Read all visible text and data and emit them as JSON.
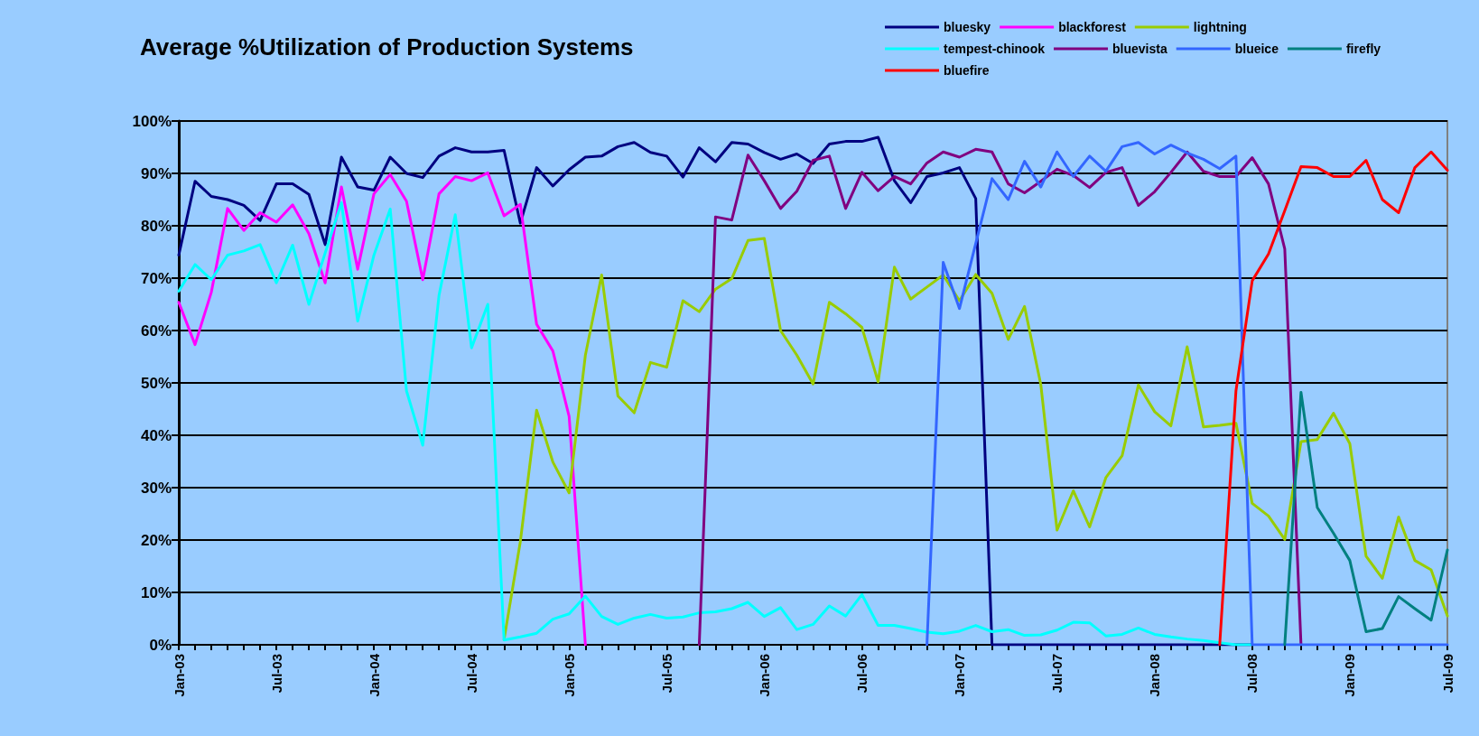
{
  "chart_data": {
    "type": "line",
    "title": "Average %Utilization of Production Systems",
    "categories": [
      "Jan-03",
      null,
      null,
      null,
      null,
      null,
      "Jul-03",
      null,
      null,
      null,
      null,
      null,
      "Jan-04",
      null,
      null,
      null,
      null,
      null,
      "Jul-04",
      null,
      null,
      null,
      null,
      null,
      "Jan-05",
      null,
      null,
      null,
      null,
      null,
      "Jul-05",
      null,
      null,
      null,
      null,
      null,
      "Jan-06",
      null,
      null,
      null,
      null,
      null,
      "Jul-06",
      null,
      null,
      null,
      null,
      null,
      "Jan-07",
      null,
      null,
      null,
      null,
      null,
      "Jul-07",
      null,
      null,
      null,
      null,
      null,
      "Jan-08",
      null,
      null,
      null,
      null,
      null,
      "Jul-08",
      null,
      null,
      null,
      null,
      null,
      "Jan-09",
      null,
      null,
      null,
      null,
      null,
      "Jul-09"
    ],
    "series": [
      {
        "name": "bluesky",
        "color": "#000080",
        "values": [
          74.4,
          88.5,
          85.6,
          85,
          83.9,
          81,
          88,
          88,
          86,
          76.4,
          93.1,
          87.4,
          86.8,
          93.1,
          90,
          89.2,
          93.3,
          94.9,
          94.1,
          94.1,
          94.4,
          80.5,
          91.1,
          87.6,
          90.7,
          93.1,
          93.3,
          95.1,
          95.9,
          94,
          93.3,
          89.3,
          94.9,
          92.2,
          95.9,
          95.6,
          94,
          92.7,
          93.7,
          91.9,
          95.6,
          96.1,
          96.1,
          96.9,
          88.6,
          84.4,
          89.4,
          90.1,
          91.1,
          85.2,
          0,
          0,
          0,
          0,
          0,
          0,
          0,
          0,
          0,
          0,
          0,
          0,
          0,
          0,
          0,
          0,
          0,
          null,
          null,
          null,
          null,
          null,
          null,
          null,
          null,
          null,
          null,
          null,
          null
        ]
      },
      {
        "name": "blackforest",
        "color": "#ff00ff",
        "values": [
          65.4,
          57.3,
          67.3,
          83.3,
          79.1,
          82.5,
          80.7,
          84,
          78.5,
          69.1,
          87.4,
          71.7,
          86.1,
          89.8,
          84.7,
          69.7,
          86.1,
          89.4,
          88.6,
          90.1,
          81.9,
          84.1,
          61.2,
          56.1,
          43.6,
          0,
          null,
          null,
          null,
          null,
          null,
          null,
          null,
          null,
          null,
          null,
          null,
          null,
          null,
          null,
          null,
          null,
          null,
          null,
          null,
          null,
          null,
          null,
          null,
          null,
          null,
          null,
          null,
          null,
          null,
          null,
          null,
          null,
          null,
          null,
          null,
          null,
          null,
          null,
          null,
          null,
          null,
          null,
          null,
          null,
          null,
          null,
          null,
          null,
          null,
          null,
          null,
          null,
          null
        ]
      },
      {
        "name": "lightning",
        "color": "#99cc00",
        "values": [
          null,
          null,
          null,
          null,
          null,
          null,
          null,
          null,
          null,
          null,
          null,
          null,
          null,
          null,
          null,
          null,
          null,
          null,
          null,
          null,
          1,
          19.7,
          44.8,
          34.9,
          29,
          55.3,
          70.6,
          47.5,
          44.3,
          53.9,
          53,
          65.7,
          63.6,
          67.9,
          69.9,
          77.2,
          77.6,
          60,
          55.3,
          49.8,
          65.4,
          63.2,
          60.6,
          50.2,
          72.1,
          66,
          68.3,
          70.6,
          65.7,
          70.7,
          67.1,
          58.3,
          64.6,
          49.7,
          21.9,
          29.4,
          22.5,
          31.9,
          36.1,
          49.6,
          44.5,
          41.8,
          56.9,
          41.6,
          41.9,
          42.3,
          27,
          24.6,
          20.1,
          38.8,
          39.2,
          44.2,
          38.4,
          16.9,
          12.7,
          24.4,
          16.1,
          14.3,
          5.5
        ]
      },
      {
        "name": "tempest-chinook",
        "color": "#00ffff",
        "values": [
          67.5,
          72.6,
          69.7,
          74.4,
          75.2,
          76.4,
          69.1,
          76.3,
          65,
          74.8,
          84.4,
          61.8,
          74.4,
          83.2,
          48.5,
          38.1,
          66.7,
          82.1,
          56.7,
          65,
          0.9,
          1.5,
          2.2,
          4.9,
          5.9,
          9.3,
          5.4,
          3.9,
          5.1,
          5.8,
          5.1,
          5.3,
          6.1,
          6.3,
          6.9,
          8.1,
          5.4,
          7.1,
          2.9,
          3.9,
          7.4,
          5.5,
          9.6,
          3.7,
          3.7,
          3.1,
          2.4,
          2.1,
          2.6,
          3.7,
          2.5,
          2.9,
          1.8,
          1.9,
          2.8,
          4.3,
          4.2,
          1.7,
          2,
          3.2,
          2,
          1.5,
          1.1,
          0.8,
          0.4,
          0,
          0,
          null,
          null,
          null,
          null,
          null,
          null,
          null,
          null,
          null,
          null,
          null,
          null
        ]
      },
      {
        "name": "bluevista",
        "color": "#800080",
        "values": [
          null,
          null,
          null,
          null,
          null,
          null,
          null,
          null,
          null,
          null,
          null,
          null,
          null,
          null,
          null,
          null,
          null,
          null,
          null,
          null,
          null,
          null,
          null,
          null,
          null,
          null,
          null,
          null,
          null,
          null,
          null,
          null,
          0,
          81.7,
          81.1,
          93.5,
          88.6,
          83.3,
          86.6,
          92.5,
          93.3,
          83.3,
          90.2,
          86.7,
          89.4,
          88,
          92,
          94.1,
          93.1,
          94.6,
          94.1,
          88,
          86.3,
          88.5,
          90.8,
          89.6,
          87.3,
          90.2,
          91.1,
          83.9,
          86.5,
          90.2,
          94.1,
          90.4,
          89.4,
          89.4,
          93,
          88,
          75.6,
          0,
          null,
          null,
          null,
          null,
          null,
          null,
          null,
          null,
          null
        ]
      },
      {
        "name": "blueice",
        "color": "#3366ff",
        "values": [
          null,
          null,
          null,
          null,
          null,
          null,
          null,
          null,
          null,
          null,
          null,
          null,
          null,
          null,
          null,
          null,
          null,
          null,
          null,
          null,
          null,
          null,
          null,
          null,
          null,
          null,
          null,
          null,
          null,
          null,
          null,
          null,
          null,
          null,
          null,
          null,
          null,
          null,
          null,
          null,
          null,
          null,
          null,
          null,
          null,
          null,
          0,
          73,
          64.2,
          76.6,
          89,
          85,
          92.3,
          87.4,
          94.1,
          89.4,
          93.3,
          90.4,
          95.1,
          95.9,
          93.7,
          95.4,
          93.9,
          92.7,
          90.9,
          93.3,
          0,
          0,
          0,
          0,
          0,
          0,
          0,
          0,
          0,
          0,
          0,
          0,
          0
        ]
      },
      {
        "name": "firefly",
        "color": "#008080",
        "values": [
          null,
          null,
          null,
          null,
          null,
          null,
          null,
          null,
          null,
          null,
          null,
          null,
          null,
          null,
          null,
          null,
          null,
          null,
          null,
          null,
          null,
          null,
          null,
          null,
          null,
          null,
          null,
          null,
          null,
          null,
          null,
          null,
          null,
          null,
          null,
          null,
          null,
          null,
          null,
          null,
          null,
          null,
          null,
          null,
          null,
          null,
          null,
          null,
          null,
          null,
          null,
          null,
          null,
          null,
          null,
          null,
          null,
          null,
          null,
          null,
          null,
          null,
          null,
          null,
          null,
          null,
          null,
          null,
          0,
          48.2,
          26.2,
          21.3,
          16.1,
          2.5,
          3.1,
          9.2,
          6.9,
          4.7,
          18.1
        ]
      },
      {
        "name": "bluefire",
        "color": "#ff0000",
        "values": [
          null,
          null,
          null,
          null,
          null,
          null,
          null,
          null,
          null,
          null,
          null,
          null,
          null,
          null,
          null,
          null,
          null,
          null,
          null,
          null,
          null,
          null,
          null,
          null,
          null,
          null,
          null,
          null,
          null,
          null,
          null,
          null,
          null,
          null,
          null,
          null,
          null,
          null,
          null,
          null,
          null,
          null,
          null,
          null,
          null,
          null,
          null,
          null,
          null,
          null,
          null,
          null,
          null,
          null,
          null,
          null,
          null,
          null,
          null,
          null,
          null,
          null,
          null,
          null,
          0,
          48.5,
          69.5,
          74.6,
          82.9,
          91.3,
          91.1,
          89.4,
          89.4,
          92.5,
          85,
          82.5,
          91.1,
          94.1,
          90.6
        ]
      }
    ],
    "ylim": [
      0,
      100
    ],
    "yticks": [
      {
        "value": 0,
        "label": "0%"
      },
      {
        "value": 10,
        "label": "10%"
      },
      {
        "value": 20,
        "label": "20%"
      },
      {
        "value": 30,
        "label": "30%"
      },
      {
        "value": 40,
        "label": "40%"
      },
      {
        "value": 50,
        "label": "50%"
      },
      {
        "value": 60,
        "label": "60%"
      },
      {
        "value": 70,
        "label": "70%"
      },
      {
        "value": 80,
        "label": "80%"
      },
      {
        "value": 90,
        "label": "90%"
      },
      {
        "value": 100,
        "label": "100%"
      }
    ],
    "grid": "y",
    "legend": "top right"
  }
}
